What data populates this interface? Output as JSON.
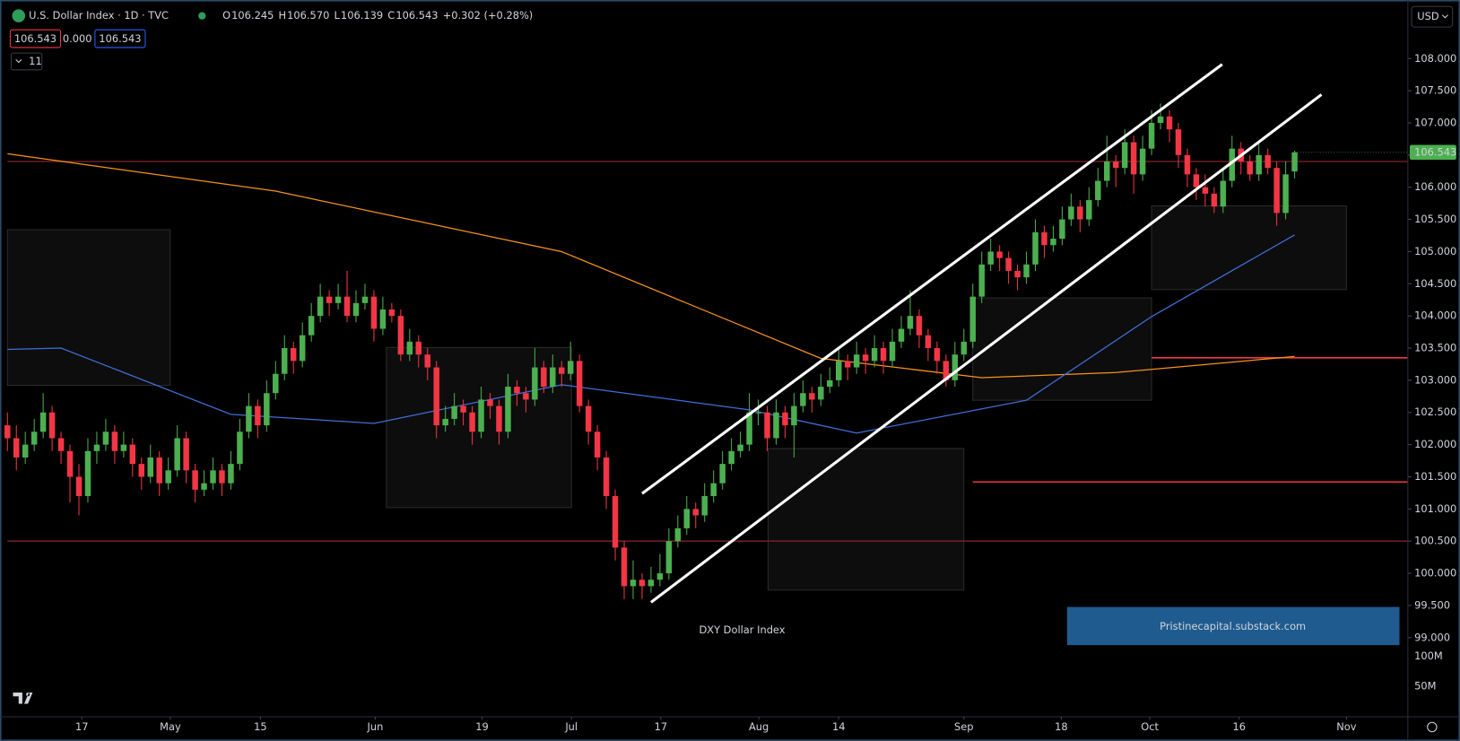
{
  "header": {
    "symbol_title": "U.S. Dollar Index · 1D · TVC",
    "legend": [
      "O",
      "106.245",
      "H",
      "106.570",
      "L",
      "106.139",
      "C",
      "106.543",
      "+0.302 (+0.28%)"
    ],
    "price_boxes": [
      "106.543",
      "0.000",
      "106.543"
    ],
    "collapse": "11",
    "currency": "USD"
  },
  "chart_data": {
    "type": "candlestick",
    "up_color": "#4caf50",
    "down_color": "#f23645",
    "xlim": [
      -0.83,
      156.67
    ],
    "ylim": [
      97.77,
      108.91
    ],
    "grid": false,
    "xticks": [
      {
        "value": 8.33,
        "label": "17"
      },
      {
        "value": 18.23,
        "label": "May"
      },
      {
        "value": 28.3,
        "label": "15"
      },
      {
        "value": 41.15,
        "label": "Jun"
      },
      {
        "value": 53.1,
        "label": "19"
      },
      {
        "value": 63.1,
        "label": "Jul"
      },
      {
        "value": 73.1,
        "label": "17"
      },
      {
        "value": 84.06,
        "label": "Aug"
      },
      {
        "value": 93.0,
        "label": "14"
      },
      {
        "value": 107.0,
        "label": "Sep"
      },
      {
        "value": 117.9,
        "label": "18"
      },
      {
        "value": 127.8,
        "label": "Oct"
      },
      {
        "value": 137.8,
        "label": "16"
      },
      {
        "value": 149.8,
        "label": "Nov"
      }
    ],
    "yticks": [
      {
        "value": 108,
        "label": "108.000"
      },
      {
        "value": 107.5,
        "label": "107.500"
      },
      {
        "value": 107,
        "label": "107.000"
      },
      {
        "value": 106.5,
        "label": "106.500"
      },
      {
        "value": 106,
        "label": "106.000"
      },
      {
        "value": 105.5,
        "label": "105.500"
      },
      {
        "value": 105,
        "label": "105.000"
      },
      {
        "value": 104.5,
        "label": "104.500"
      },
      {
        "value": 104,
        "label": "104.000"
      },
      {
        "value": 103.5,
        "label": "103.500"
      },
      {
        "value": 103,
        "label": "103.000"
      },
      {
        "value": 102.5,
        "label": "102.500"
      },
      {
        "value": 102,
        "label": "102.000"
      },
      {
        "value": 101.5,
        "label": "101.500"
      },
      {
        "value": 101,
        "label": "101.000"
      },
      {
        "value": 100.5,
        "label": "100.500"
      },
      {
        "value": 100,
        "label": "100.000"
      },
      {
        "value": 99.5,
        "label": "99.500"
      },
      {
        "value": 99,
        "label": "99.000"
      }
    ],
    "volume_ticks": [
      "100M",
      "50M"
    ],
    "last_price": {
      "value": 106.543,
      "label": "106.543",
      "color": "#4caf50"
    },
    "ohlc": [
      [
        102.3,
        102.5,
        101.9,
        102.1
      ],
      [
        102.1,
        102.3,
        101.6,
        101.8
      ],
      [
        101.8,
        102.2,
        101.7,
        102.0
      ],
      [
        102.0,
        102.4,
        101.9,
        102.2
      ],
      [
        102.2,
        102.8,
        102.1,
        102.5
      ],
      [
        102.5,
        102.6,
        101.9,
        102.1
      ],
      [
        102.1,
        102.2,
        101.7,
        101.9
      ],
      [
        101.9,
        102.0,
        101.1,
        101.5
      ],
      [
        101.5,
        101.7,
        100.9,
        101.2
      ],
      [
        101.2,
        102.1,
        101.1,
        101.9
      ],
      [
        101.9,
        102.2,
        101.7,
        102.0
      ],
      [
        102.0,
        102.4,
        101.9,
        102.2
      ],
      [
        102.2,
        102.3,
        101.7,
        101.9
      ],
      [
        101.9,
        102.2,
        101.8,
        102.0
      ],
      [
        102.0,
        102.1,
        101.5,
        101.7
      ],
      [
        101.7,
        101.8,
        101.3,
        101.5
      ],
      [
        101.5,
        102.0,
        101.4,
        101.8
      ],
      [
        101.8,
        101.9,
        101.2,
        101.4
      ],
      [
        101.4,
        101.8,
        101.3,
        101.6
      ],
      [
        101.6,
        102.3,
        101.5,
        102.1
      ],
      [
        102.1,
        102.2,
        101.4,
        101.6
      ],
      [
        101.6,
        101.7,
        101.1,
        101.3
      ],
      [
        101.3,
        101.6,
        101.2,
        101.4
      ],
      [
        101.4,
        101.8,
        101.3,
        101.6
      ],
      [
        101.6,
        101.7,
        101.2,
        101.4
      ],
      [
        101.4,
        101.9,
        101.3,
        101.7
      ],
      [
        101.7,
        102.4,
        101.6,
        102.2
      ],
      [
        102.2,
        102.8,
        102.1,
        102.6
      ],
      [
        102.6,
        102.7,
        102.1,
        102.3
      ],
      [
        102.3,
        103.0,
        102.2,
        102.8
      ],
      [
        102.8,
        103.3,
        102.7,
        103.1
      ],
      [
        103.1,
        103.7,
        103.0,
        103.5
      ],
      [
        103.5,
        103.6,
        103.1,
        103.3
      ],
      [
        103.3,
        103.9,
        103.2,
        103.7
      ],
      [
        103.7,
        104.2,
        103.6,
        104.0
      ],
      [
        104.0,
        104.5,
        103.9,
        104.3
      ],
      [
        104.3,
        104.4,
        104.0,
        104.2
      ],
      [
        104.2,
        104.5,
        104.1,
        104.3
      ],
      [
        104.3,
        104.7,
        103.9,
        104.0
      ],
      [
        104.0,
        104.4,
        103.9,
        104.2
      ],
      [
        104.2,
        104.5,
        104.1,
        104.3
      ],
      [
        104.3,
        104.4,
        103.6,
        103.8
      ],
      [
        103.8,
        104.3,
        103.7,
        104.1
      ],
      [
        104.1,
        104.2,
        103.9,
        104.0
      ],
      [
        104.0,
        104.1,
        103.3,
        103.4
      ],
      [
        103.4,
        103.8,
        103.3,
        103.6
      ],
      [
        103.6,
        103.7,
        103.2,
        103.4
      ],
      [
        103.4,
        103.5,
        103.0,
        103.2
      ],
      [
        103.2,
        103.3,
        102.1,
        102.3
      ],
      [
        102.3,
        102.6,
        102.2,
        102.4
      ],
      [
        102.4,
        102.8,
        102.3,
        102.6
      ],
      [
        102.6,
        102.7,
        102.3,
        102.5
      ],
      [
        102.5,
        102.6,
        102.0,
        102.2
      ],
      [
        102.2,
        102.9,
        102.1,
        102.7
      ],
      [
        102.7,
        102.8,
        102.4,
        102.6
      ],
      [
        102.6,
        102.7,
        102.0,
        102.2
      ],
      [
        102.2,
        103.1,
        102.1,
        102.9
      ],
      [
        102.9,
        103.0,
        102.6,
        102.8
      ],
      [
        102.8,
        102.9,
        102.5,
        102.7
      ],
      [
        102.7,
        103.5,
        102.6,
        103.2
      ],
      [
        103.2,
        103.3,
        102.8,
        102.9
      ],
      [
        102.9,
        103.4,
        102.8,
        103.2
      ],
      [
        103.2,
        103.3,
        102.9,
        103.1
      ],
      [
        103.1,
        103.6,
        103.0,
        103.3
      ],
      [
        103.3,
        103.4,
        102.5,
        102.6
      ],
      [
        102.6,
        102.7,
        102.0,
        102.2
      ],
      [
        102.2,
        102.3,
        101.6,
        101.8
      ],
      [
        101.8,
        101.9,
        101.0,
        101.2
      ],
      [
        101.2,
        101.3,
        100.2,
        100.4
      ],
      [
        100.4,
        100.5,
        99.6,
        99.8
      ],
      [
        99.8,
        100.2,
        99.6,
        99.9
      ],
      [
        99.9,
        100.0,
        99.6,
        99.8
      ],
      [
        99.8,
        100.1,
        99.7,
        99.9
      ],
      [
        99.9,
        100.3,
        99.8,
        100.0
      ],
      [
        100.0,
        100.7,
        99.9,
        100.5
      ],
      [
        100.5,
        100.9,
        100.4,
        100.7
      ],
      [
        100.7,
        101.2,
        100.6,
        101.0
      ],
      [
        101.0,
        101.1,
        100.7,
        100.9
      ],
      [
        100.9,
        101.4,
        100.8,
        101.2
      ],
      [
        101.2,
        101.6,
        101.1,
        101.4
      ],
      [
        101.4,
        101.9,
        101.3,
        101.7
      ],
      [
        101.7,
        102.1,
        101.6,
        101.9
      ],
      [
        101.9,
        102.2,
        101.8,
        102.0
      ],
      [
        102.0,
        102.8,
        101.9,
        102.5
      ],
      [
        102.5,
        102.7,
        102.3,
        102.5
      ],
      [
        102.5,
        102.6,
        101.9,
        102.1
      ],
      [
        102.1,
        102.7,
        102.0,
        102.5
      ],
      [
        102.5,
        102.6,
        102.1,
        102.3
      ],
      [
        102.3,
        102.8,
        101.8,
        102.6
      ],
      [
        102.6,
        103.0,
        102.5,
        102.8
      ],
      [
        102.8,
        102.9,
        102.5,
        102.7
      ],
      [
        102.7,
        103.1,
        102.6,
        102.9
      ],
      [
        102.9,
        103.2,
        102.8,
        103.0
      ],
      [
        103.0,
        103.5,
        102.9,
        103.3
      ],
      [
        103.3,
        103.4,
        103.0,
        103.2
      ],
      [
        103.2,
        103.6,
        103.1,
        103.4
      ],
      [
        103.4,
        103.5,
        103.1,
        103.3
      ],
      [
        103.3,
        103.7,
        103.2,
        103.5
      ],
      [
        103.5,
        103.6,
        103.1,
        103.3
      ],
      [
        103.3,
        103.8,
        103.2,
        103.6
      ],
      [
        103.6,
        104.0,
        103.5,
        103.8
      ],
      [
        103.8,
        104.4,
        103.7,
        104.0
      ],
      [
        104.0,
        104.1,
        103.5,
        103.7
      ],
      [
        103.7,
        103.8,
        103.3,
        103.5
      ],
      [
        103.5,
        103.6,
        103.1,
        103.3
      ],
      [
        103.3,
        103.4,
        102.9,
        103.0
      ],
      [
        103.0,
        103.6,
        102.9,
        103.4
      ],
      [
        103.4,
        103.8,
        103.3,
        103.6
      ],
      [
        103.6,
        104.5,
        103.5,
        104.3
      ],
      [
        104.3,
        105.0,
        104.2,
        104.8
      ],
      [
        104.8,
        105.2,
        104.7,
        105.0
      ],
      [
        105.0,
        105.1,
        104.7,
        104.9
      ],
      [
        104.9,
        105.0,
        104.5,
        104.7
      ],
      [
        104.7,
        104.8,
        104.4,
        104.6
      ],
      [
        104.6,
        105.0,
        104.5,
        104.8
      ],
      [
        104.8,
        105.5,
        104.7,
        105.3
      ],
      [
        105.3,
        105.4,
        104.9,
        105.1
      ],
      [
        105.1,
        105.4,
        105.0,
        105.2
      ],
      [
        105.2,
        105.7,
        105.1,
        105.5
      ],
      [
        105.5,
        105.9,
        105.4,
        105.7
      ],
      [
        105.7,
        105.8,
        105.3,
        105.5
      ],
      [
        105.5,
        106.0,
        105.4,
        105.8
      ],
      [
        105.8,
        106.3,
        105.7,
        106.1
      ],
      [
        106.1,
        106.8,
        106.0,
        106.4
      ],
      [
        106.4,
        106.5,
        106.0,
        106.3
      ],
      [
        106.3,
        106.9,
        106.2,
        106.7
      ],
      [
        106.7,
        106.8,
        105.9,
        106.2
      ],
      [
        106.2,
        106.8,
        106.1,
        106.6
      ],
      [
        106.6,
        107.2,
        106.5,
        107.0
      ],
      [
        107.0,
        107.3,
        106.9,
        107.1
      ],
      [
        107.1,
        107.2,
        106.7,
        106.9
      ],
      [
        106.9,
        107.0,
        106.3,
        106.5
      ],
      [
        106.5,
        106.6,
        106.0,
        106.2
      ],
      [
        106.2,
        106.3,
        105.8,
        106.0
      ],
      [
        106.0,
        106.2,
        105.7,
        105.9
      ],
      [
        105.9,
        106.0,
        105.6,
        105.7
      ],
      [
        105.7,
        106.3,
        105.6,
        106.1
      ],
      [
        106.1,
        106.8,
        106.0,
        106.6
      ],
      [
        106.6,
        106.7,
        106.2,
        106.4
      ],
      [
        106.4,
        106.5,
        106.1,
        106.2
      ],
      [
        106.2,
        106.7,
        106.1,
        106.5
      ],
      [
        106.5,
        106.6,
        106.2,
        106.3
      ],
      [
        106.3,
        106.4,
        105.4,
        105.6
      ],
      [
        105.6,
        106.4,
        105.5,
        106.2
      ],
      [
        106.245,
        106.57,
        106.139,
        106.543
      ]
    ],
    "lines": [
      {
        "color": "#f7931a",
        "x": [
          0,
          30,
          62,
          91,
          109,
          124,
          144
        ],
        "values": [
          106.52,
          105.94,
          105.0,
          103.34,
          103.04,
          103.12,
          103.37
        ]
      },
      {
        "color": "#3f6fd8",
        "x": [
          0,
          6,
          25,
          41,
          62,
          83,
          95,
          114,
          128,
          144
        ],
        "values": [
          103.48,
          103.5,
          102.47,
          102.33,
          102.93,
          102.54,
          102.18,
          102.69,
          103.99,
          105.26
        ]
      },
      {
        "color": "#ffffff",
        "x": [
          71,
          135.9
        ],
        "values": [
          101.24,
          107.91
        ]
      },
      {
        "color": "#ffffff",
        "x": [
          72,
          147
        ],
        "values": [
          99.55,
          107.44
        ]
      }
    ],
    "hlines": [
      {
        "value": 103.35,
        "x0": 128,
        "color": "#f23645"
      },
      {
        "value": 101.42,
        "x0": 108,
        "color": "#f23645"
      },
      {
        "value": 106.4,
        "x0": 0,
        "color": "#6b1f22"
      },
      {
        "value": 100.5,
        "x0": 0,
        "color": "#6b1f22"
      }
    ],
    "zones": [
      {
        "x": [
          0,
          18.2
        ],
        "y": [
          102.92,
          105.34
        ]
      },
      {
        "x": [
          42.4,
          63.1
        ],
        "y": [
          101.02,
          103.51
        ]
      },
      {
        "x": [
          85.1,
          107
        ],
        "y": [
          99.74,
          101.94
        ]
      },
      {
        "x": [
          108,
          128
        ],
        "y": [
          102.69,
          104.28
        ]
      },
      {
        "x": [
          128,
          149.8
        ],
        "y": [
          104.41,
          105.71
        ]
      }
    ],
    "watermark": "DXY Dollar Index",
    "credit": "Pristinecapital.substack.com"
  }
}
